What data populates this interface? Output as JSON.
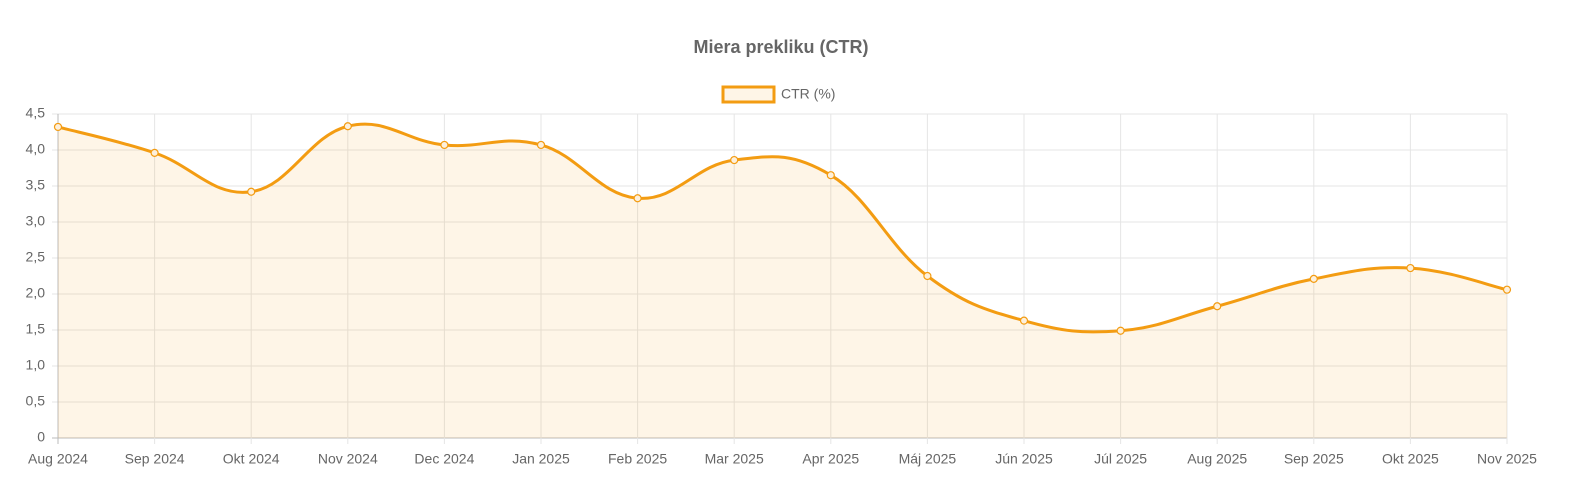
{
  "chart_data": {
    "type": "line",
    "title": "Miera prekliku (CTR)",
    "categories": [
      "Aug 2024",
      "Sep 2024",
      "Okt 2024",
      "Nov 2024",
      "Dec 2024",
      "Jan 2025",
      "Feb 2025",
      "Mar 2025",
      "Apr 2025",
      "Máj 2025",
      "Jún 2025",
      "Júl 2025",
      "Aug 2025",
      "Sep 2025",
      "Okt 2025",
      "Nov 2025"
    ],
    "series": [
      {
        "name": "CTR (%)",
        "color": "#f39c12",
        "values": [
          4.32,
          3.96,
          3.42,
          4.33,
          4.07,
          4.07,
          3.33,
          3.86,
          3.65,
          2.25,
          1.63,
          1.49,
          1.83,
          2.21,
          2.36,
          2.06
        ]
      }
    ],
    "ylim": [
      0,
      4.5
    ],
    "yticks": [
      0,
      {
        "value": 0.5,
        "label": "0,5"
      },
      {
        "value": 1,
        "label": "1,0"
      },
      {
        "value": 1.5,
        "label": "1,5"
      },
      {
        "value": 2,
        "label": "2,0"
      },
      {
        "value": 2.5,
        "label": "2,5"
      },
      {
        "value": 3,
        "label": "3,0"
      },
      {
        "value": 3.5,
        "label": "3,5"
      },
      {
        "value": 4,
        "label": "4,0"
      },
      {
        "value": 4.5,
        "label": "4,5"
      }
    ],
    "grid": true,
    "fill": true
  }
}
